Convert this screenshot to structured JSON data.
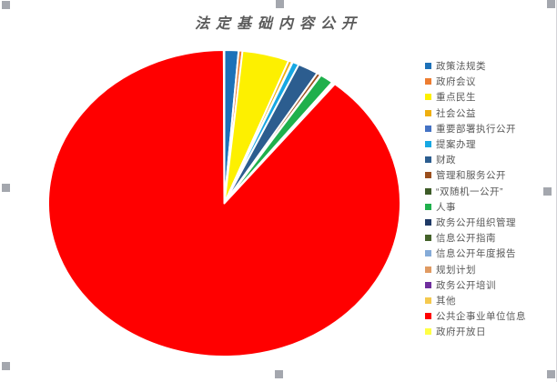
{
  "title": "法定基础内容公开",
  "chart_data": {
    "type": "pie",
    "title": "法定基础内容公开",
    "legend_position": "right",
    "start_angle_deg": 0,
    "direction": "clockwise",
    "units": "percent (estimated from slice angles)",
    "slices": [
      {
        "label": "政策法规类",
        "value": 1.3,
        "color": "#1d71b8"
      },
      {
        "label": "政府会议",
        "value": 0.35,
        "color": "#ed7d31"
      },
      {
        "label": "重点民生",
        "value": 4.3,
        "color": "#fdf000"
      },
      {
        "label": "社会公益",
        "value": 0.35,
        "color": "#efaf10"
      },
      {
        "label": "重要部署执行公开",
        "value": 0.05,
        "color": "#4472c4"
      },
      {
        "label": "提案办理",
        "value": 0.6,
        "color": "#17a8e3"
      },
      {
        "label": "财政",
        "value": 1.9,
        "color": "#2c5d8f"
      },
      {
        "label": "管理和服务公开",
        "value": 0.35,
        "color": "#9a4e1d"
      },
      {
        "label": "“双随机一公开”",
        "value": 0.05,
        "color": "#3e5b28"
      },
      {
        "label": "人事",
        "value": 1.25,
        "color": "#1fb04c"
      },
      {
        "label": "政务公开组织管理",
        "value": 0.05,
        "color": "#1f3a66"
      },
      {
        "label": "信息公开指南",
        "value": 0.05,
        "color": "#44622a"
      },
      {
        "label": "信息公开年度报告",
        "value": 0.05,
        "color": "#85abd8"
      },
      {
        "label": "规划计划",
        "value": 0.05,
        "color": "#e09a62"
      },
      {
        "label": "政务公开培训",
        "value": 0.05,
        "color": "#6f2f9e"
      },
      {
        "label": "其他",
        "value": 0.05,
        "color": "#f5c94e"
      },
      {
        "label": "公共企事业单位信息",
        "value": 89.15,
        "color": "#ff0000"
      },
      {
        "label": "政府开放日",
        "value": 0.05,
        "color": "#ffff45"
      }
    ]
  },
  "ui": {
    "title_color": "#5b5b5b",
    "legend_text_color": "#595959",
    "slice_border_color": "#ffffff",
    "selection_handle_color": "#a4a7ae"
  }
}
